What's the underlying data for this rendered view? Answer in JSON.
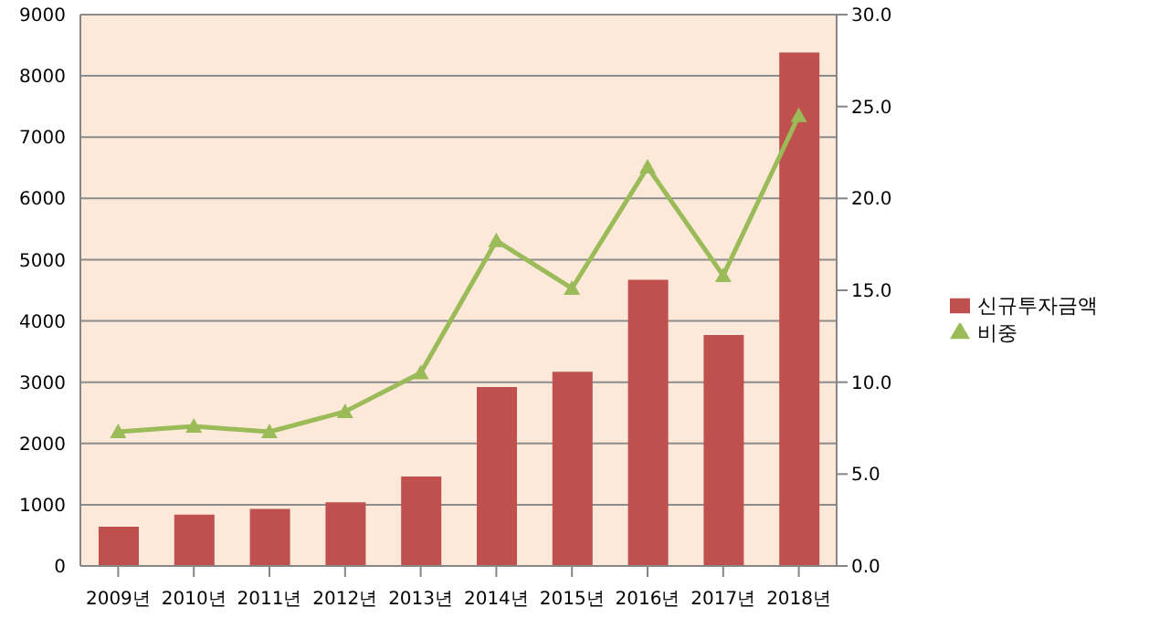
{
  "chart_data": {
    "type": "bar",
    "categories": [
      "2009년",
      "2010년",
      "2011년",
      "2012년",
      "2013년",
      "2014년",
      "2015년",
      "2016년",
      "2017년",
      "2018년"
    ],
    "series": [
      {
        "name": "신규투자금액",
        "color": "#c0504d",
        "values": [
          640,
          840,
          930,
          1040,
          1460,
          2920,
          3170,
          4670,
          3770,
          8380
        ]
      },
      {
        "name": "비중",
        "type": "line",
        "axis": "y2",
        "color": "#9bbb59",
        "values": [
          7.3,
          7.6,
          7.3,
          8.4,
          10.5,
          17.7,
          15.1,
          21.7,
          15.8,
          24.5
        ]
      }
    ],
    "ylim": [
      0,
      9000
    ],
    "yticks": [
      0,
      1000,
      2000,
      3000,
      4000,
      5000,
      6000,
      7000,
      8000,
      9000
    ],
    "y2lim": [
      0,
      30
    ],
    "y2ticks": [
      {
        "value": 0,
        "label": "0.0"
      },
      {
        "value": 5,
        "label": "5.0"
      },
      {
        "value": 10,
        "label": "10.0"
      },
      {
        "value": 15,
        "label": "15.0"
      },
      {
        "value": 20,
        "label": "20.0"
      },
      {
        "value": 25,
        "label": "25.0"
      },
      {
        "value": 30,
        "label": "30.0"
      }
    ],
    "grid": "y",
    "legend": "right",
    "marker": "triangle",
    "line_style": "solid"
  }
}
